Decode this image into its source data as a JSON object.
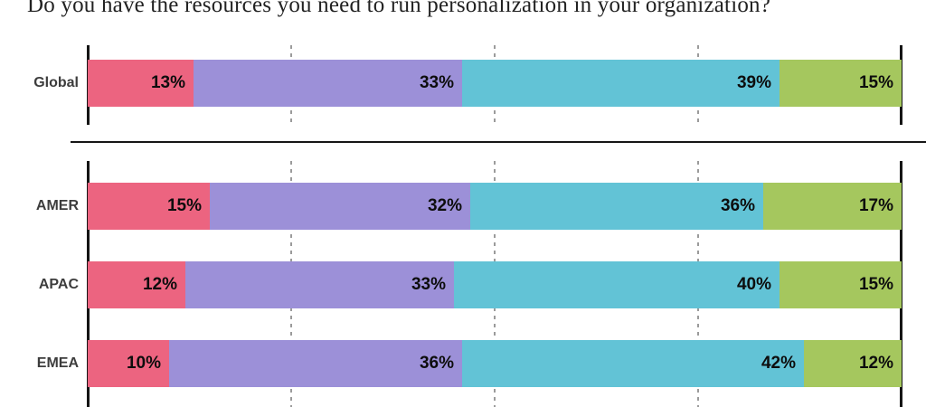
{
  "title": "Do you have the resources you need to run personalization in your organization?",
  "chart_data": {
    "type": "bar",
    "stacked": true,
    "orientation": "horizontal",
    "unit": "%",
    "xlim": [
      0,
      100
    ],
    "gridlines_pct": [
      25,
      50,
      75
    ],
    "grid_style": "dashed-vertical",
    "legend": "none",
    "value_labels": "inside-right",
    "categories": [
      "Global",
      "AMER",
      "APAC",
      "EMEA"
    ],
    "category_groups": [
      [
        "Global"
      ],
      [
        "AMER",
        "APAC",
        "EMEA"
      ]
    ],
    "series": [
      {
        "name": "series-1",
        "color": "#EC6480",
        "values": [
          13,
          15,
          12,
          10
        ]
      },
      {
        "name": "series-2",
        "color": "#9C90D8",
        "values": [
          33,
          32,
          33,
          36
        ]
      },
      {
        "name": "series-3",
        "color": "#62C3D6",
        "values": [
          39,
          36,
          40,
          42
        ]
      },
      {
        "name": "series-4",
        "color": "#A5C75E",
        "values": [
          15,
          17,
          15,
          12
        ]
      }
    ]
  },
  "colors": {
    "axis_line": "#151515",
    "gridline": "#9b9b9b",
    "separator": "#161616",
    "value_label": "#0d0d0d",
    "category_label": "#3d3d3d",
    "background": "#ffffff"
  }
}
